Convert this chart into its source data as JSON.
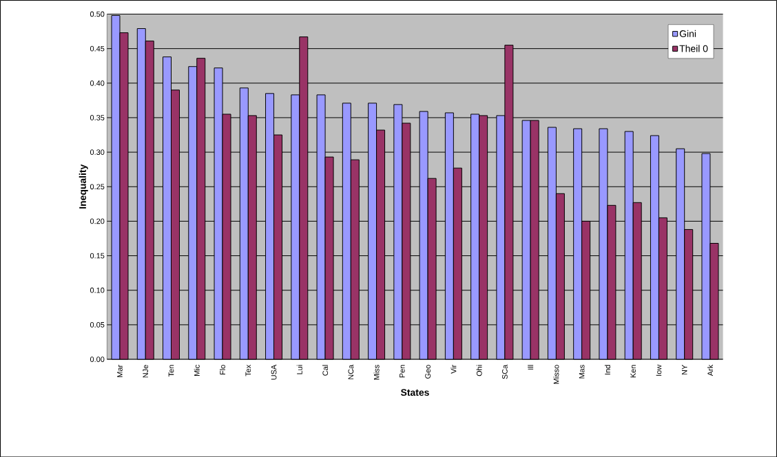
{
  "chart_data": {
    "type": "bar",
    "xlabel": "States",
    "ylabel": "Inequality",
    "categories": [
      "Mar",
      "NJe",
      "Ten",
      "Mic",
      "Flo",
      "Tex",
      "USA",
      "Lui",
      "Cal",
      "NCa",
      "Miss",
      "Pen",
      "Geo",
      "Vir",
      "Ohi",
      "SCa",
      "Ill",
      "Misso",
      "Mas",
      "Ind",
      "Ken",
      "Iow",
      "NY",
      "Ark"
    ],
    "series": [
      {
        "name": "Gini",
        "color": "#9999ff",
        "values": [
          0.498,
          0.479,
          0.438,
          0.424,
          0.422,
          0.393,
          0.385,
          0.383,
          0.383,
          0.371,
          0.371,
          0.369,
          0.359,
          0.357,
          0.355,
          0.353,
          0.346,
          0.336,
          0.334,
          0.334,
          0.33,
          0.324,
          0.305,
          0.298
        ]
      },
      {
        "name": "Theil 0",
        "color": "#993366",
        "values": [
          0.473,
          0.461,
          0.39,
          0.436,
          0.355,
          0.353,
          0.325,
          0.467,
          0.293,
          0.289,
          0.332,
          0.342,
          0.262,
          0.277,
          0.353,
          0.455,
          0.346,
          0.24,
          0.2,
          0.223,
          0.227,
          0.205,
          0.188,
          0.168
        ]
      }
    ],
    "ylim": [
      0,
      0.5
    ],
    "yticks": [
      {
        "value": 0,
        "label": "0.00"
      },
      {
        "value": 0.05,
        "label": "0.05"
      },
      {
        "value": 0.1,
        "label": "0.10"
      },
      {
        "value": 0.15,
        "label": "0.15"
      },
      {
        "value": 0.2,
        "label": "0.20"
      },
      {
        "value": 0.25,
        "label": "0.25"
      },
      {
        "value": 0.3,
        "label": "0.30"
      },
      {
        "value": 0.35,
        "label": "0.35"
      },
      {
        "value": 0.4,
        "label": "0.40"
      },
      {
        "value": 0.45,
        "label": "0.45"
      },
      {
        "value": 0.5,
        "label": "0.50"
      }
    ],
    "grid": "y",
    "legend": "top right"
  }
}
